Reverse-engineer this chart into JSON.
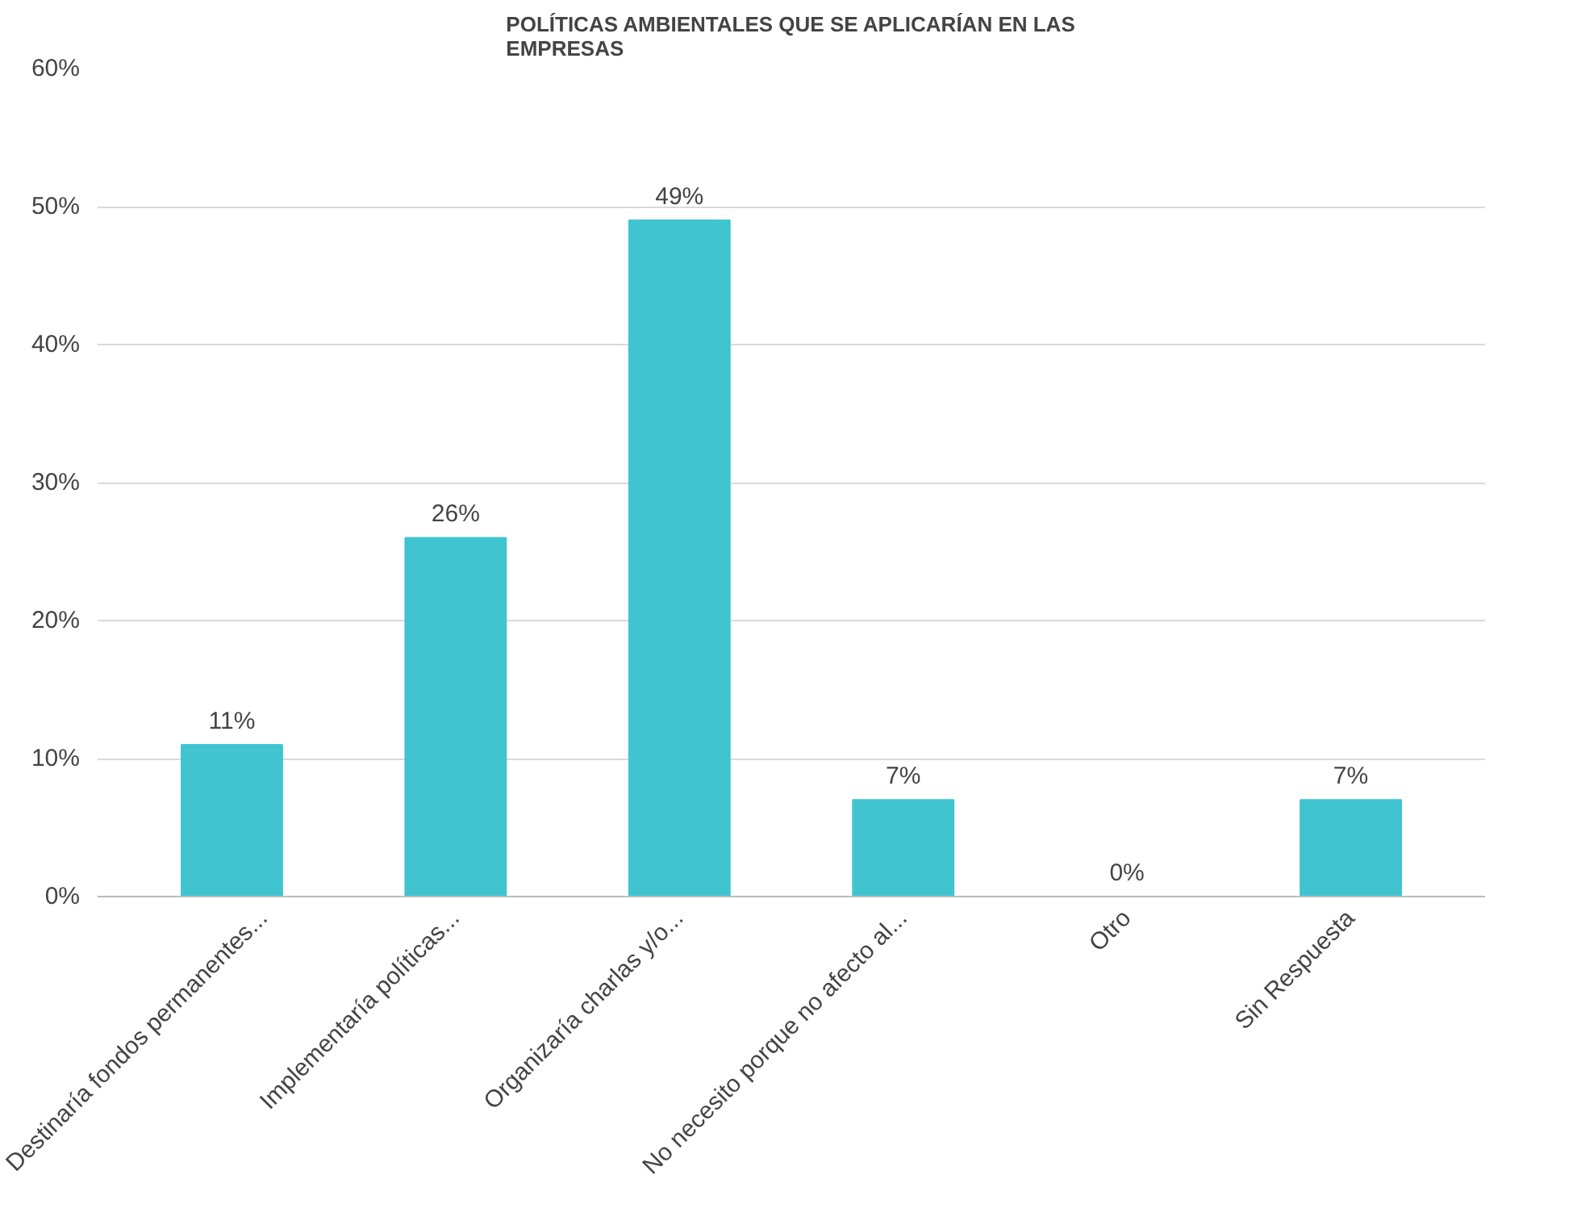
{
  "chart_data": {
    "type": "bar",
    "title": "POLÍTICAS AMBIENTALES QUE SE APLICARÍAN EN LAS\nEMPRESAS",
    "categories": [
      "Destinaría fondos permanentes...",
      "Implementaría políticas...",
      "Organizaría charlas y/o...",
      "No necesito porque no afecto al...",
      "Otro",
      "Sin Respuesta"
    ],
    "values": [
      11,
      26,
      49,
      7,
      0,
      7
    ],
    "value_labels": [
      "11%",
      "26%",
      "49%",
      "7%",
      "0%",
      "7%"
    ],
    "color": "#3fc4d0",
    "ylim": [
      0,
      60
    ],
    "yticks": [
      {
        "value": 0,
        "label": "0%"
      },
      {
        "value": 10,
        "label": "10%"
      },
      {
        "value": 20,
        "label": "20%"
      },
      {
        "value": 30,
        "label": "30%"
      },
      {
        "value": 40,
        "label": "40%"
      },
      {
        "value": 50,
        "label": "50%"
      },
      {
        "value": 60,
        "label": "60%"
      }
    ],
    "grid": "y"
  }
}
